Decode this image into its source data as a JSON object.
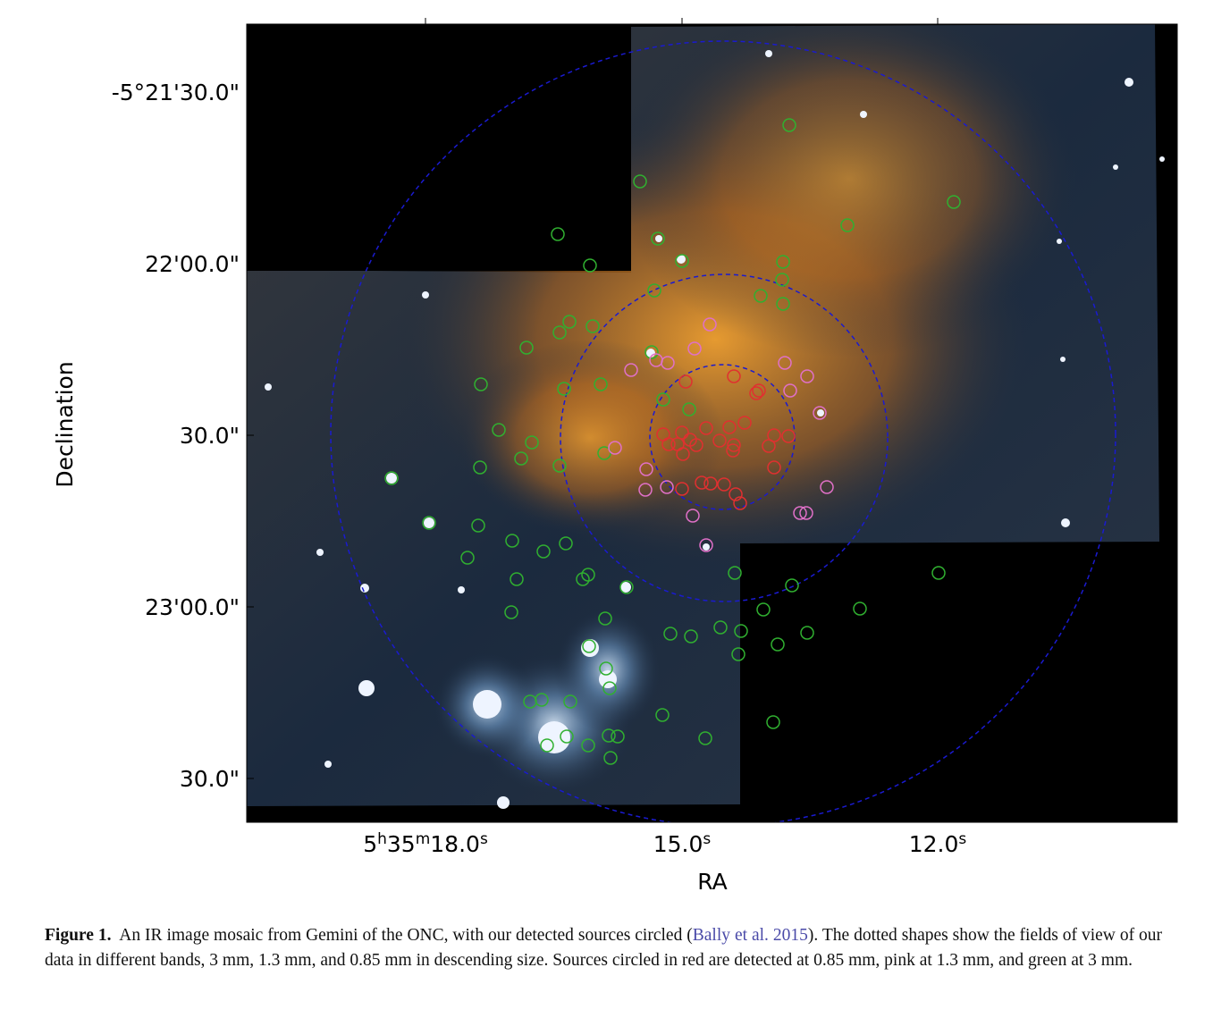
{
  "figure": {
    "y_axis": {
      "label": "Declination",
      "ticks": [
        "-5°21'30.0\"",
        "22'00.0\"",
        "30.0\"",
        "23'00.0\"",
        "30.0\""
      ]
    },
    "x_axis": {
      "label": "RA",
      "ticks": [
        [
          "5",
          "h",
          "35",
          "m",
          "18.0",
          "s"
        ],
        [
          "15.0",
          "s"
        ],
        [
          "12.0",
          "s"
        ]
      ]
    },
    "caption": {
      "label": "Figure 1.",
      "text_before": "An IR image mosaic from Gemini of the ONC, with our detected sources circled (",
      "citation": "Bally et al. 2015",
      "text_after": "). The dotted shapes show the fields of view of our data in different bands, 3 mm, 1.3 mm, and 0.85 mm in descending size. Sources circled in red are detected at 0.85 mm, pink at 1.3 mm, and green at 3 mm."
    }
  }
}
